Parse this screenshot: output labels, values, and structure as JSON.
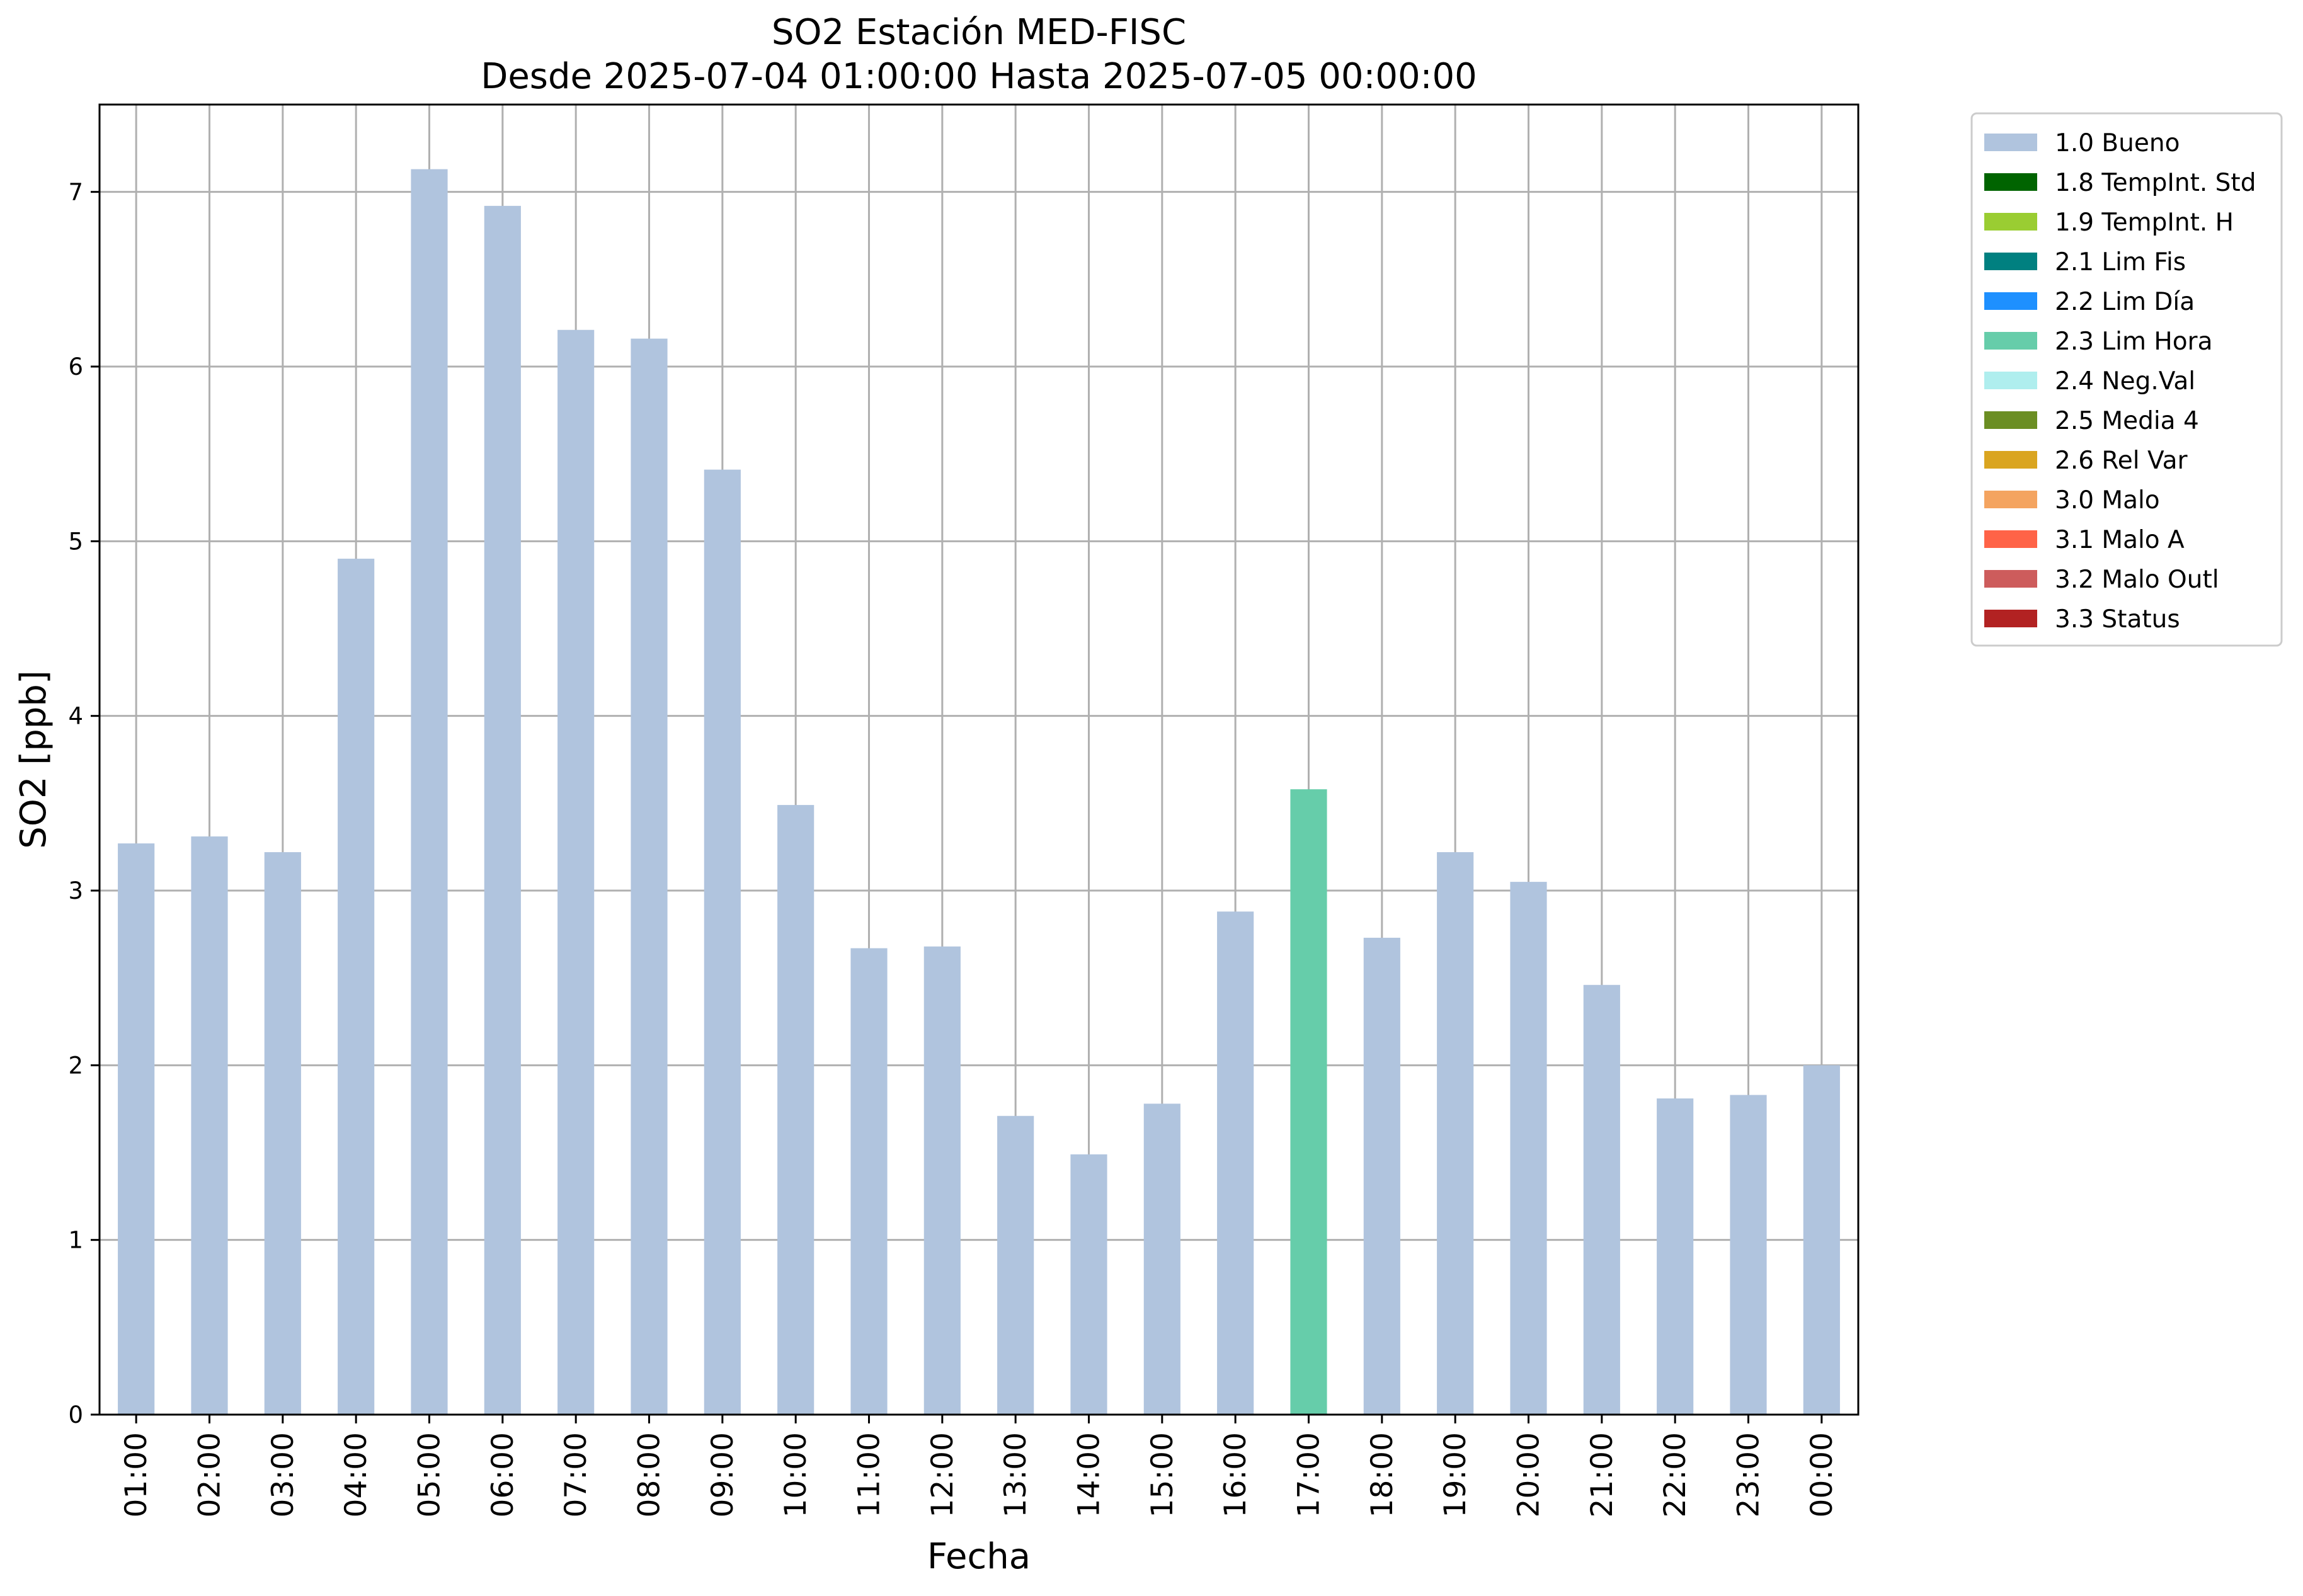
{
  "chart_data": {
    "type": "bar",
    "title": "SO2 Estación MED-FISC",
    "subtitle": "Desde 2025-07-04 01:00:00 Hasta 2025-07-05 00:00:00",
    "xlabel": "Fecha",
    "ylabel": "SO2 [ppb]",
    "ylim": [
      0,
      7.5
    ],
    "yticks": [
      "0",
      "1",
      "2",
      "3",
      "4",
      "5",
      "6",
      "7"
    ],
    "grid": true,
    "legend_position": "outside-top-right",
    "categories": [
      "01:00",
      "02:00",
      "03:00",
      "04:00",
      "05:00",
      "06:00",
      "07:00",
      "08:00",
      "09:00",
      "10:00",
      "11:00",
      "12:00",
      "13:00",
      "14:00",
      "15:00",
      "16:00",
      "17:00",
      "18:00",
      "19:00",
      "20:00",
      "21:00",
      "22:00",
      "23:00",
      "00:00"
    ],
    "values": [
      3.27,
      3.31,
      3.22,
      4.9,
      7.13,
      6.92,
      6.21,
      6.16,
      5.41,
      3.49,
      2.67,
      2.68,
      1.71,
      1.49,
      1.78,
      2.88,
      3.58,
      2.73,
      3.22,
      3.05,
      2.46,
      1.81,
      1.83,
      2.0
    ],
    "flags": [
      "1.0 Bueno",
      "1.0 Bueno",
      "1.0 Bueno",
      "1.0 Bueno",
      "1.0 Bueno",
      "1.0 Bueno",
      "1.0 Bueno",
      "1.0 Bueno",
      "1.0 Bueno",
      "1.0 Bueno",
      "1.0 Bueno",
      "1.0 Bueno",
      "1.0 Bueno",
      "1.0 Bueno",
      "1.0 Bueno",
      "1.0 Bueno",
      "2.3 Lim Hora",
      "1.0 Bueno",
      "1.0 Bueno",
      "1.0 Bueno",
      "1.0 Bueno",
      "1.0 Bueno",
      "1.0 Bueno",
      "1.0 Bueno"
    ],
    "legend": [
      {
        "label": "1.0 Bueno",
        "color": "#b0c4de"
      },
      {
        "label": "1.8 TempInt. Std",
        "color": "#006400"
      },
      {
        "label": "1.9 TempInt. H",
        "color": "#9acd32"
      },
      {
        "label": "2.1 Lim Fis",
        "color": "#008080"
      },
      {
        "label": "2.2 Lim Día",
        "color": "#1e90ff"
      },
      {
        "label": "2.3 Lim Hora",
        "color": "#66cdaa"
      },
      {
        "label": "2.4 Neg.Val",
        "color": "#afeeee"
      },
      {
        "label": "2.5 Media 4",
        "color": "#6b8e23"
      },
      {
        "label": "2.6 Rel Var",
        "color": "#daa520"
      },
      {
        "label": "3.0 Malo",
        "color": "#f4a460"
      },
      {
        "label": "3.1 Malo A",
        "color": "#ff6347"
      },
      {
        "label": "3.2 Malo Outl",
        "color": "#cd5c5c"
      },
      {
        "label": "3.3 Status",
        "color": "#b22222"
      }
    ]
  }
}
